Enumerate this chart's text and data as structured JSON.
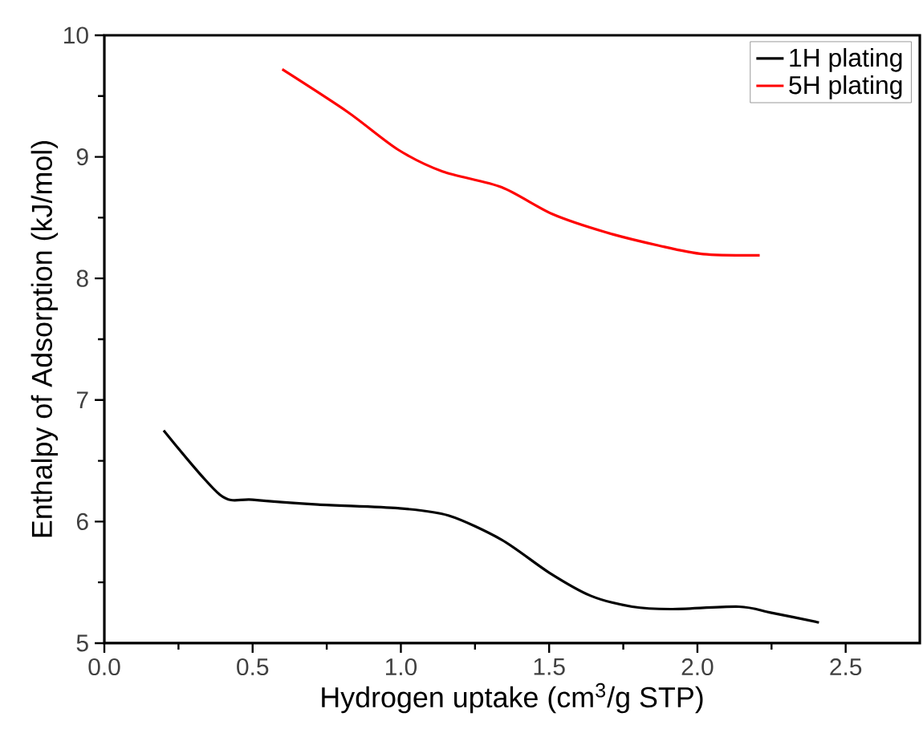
{
  "chart_data": {
    "type": "line",
    "xlabel": "Hydrogen uptake (cm$^{3}$/g STP)",
    "ylabel": "Enthalpy of Adsorption (kJ/mol)",
    "xlim": [
      0,
      2.75
    ],
    "ylim": [
      5,
      10
    ],
    "xticks": [
      {
        "value": 0,
        "label": "0.0"
      },
      0.5,
      {
        "value": 1,
        "label": "1.0"
      },
      1.5,
      {
        "value": 2,
        "label": "2.0"
      },
      2.5
    ],
    "yticks": [
      5,
      6,
      7,
      8,
      9,
      10
    ],
    "grid": false,
    "legend": "top right",
    "marker": "none",
    "line_style": "solid",
    "series": [
      {
        "name": "1H plating",
        "color": "#000000",
        "x": [
          0.2,
          0.39,
          0.5,
          0.72,
          0.99,
          1.16,
          1.34,
          1.5,
          1.64,
          1.78,
          1.91,
          2.14,
          2.25,
          2.41
        ],
        "values": [
          6.75,
          6.22,
          6.18,
          6.14,
          6.11,
          6.05,
          5.85,
          5.58,
          5.39,
          5.3,
          5.28,
          5.3,
          5.25,
          5.17
        ]
      },
      {
        "name": "5H plating",
        "color": "#ff0000",
        "x": [
          0.6,
          0.82,
          0.99,
          1.14,
          1.34,
          1.51,
          1.69,
          1.87,
          2.02,
          2.21
        ],
        "values": [
          9.72,
          9.37,
          9.06,
          8.88,
          8.75,
          8.53,
          8.38,
          8.27,
          8.2,
          8.19
        ]
      }
    ]
  }
}
